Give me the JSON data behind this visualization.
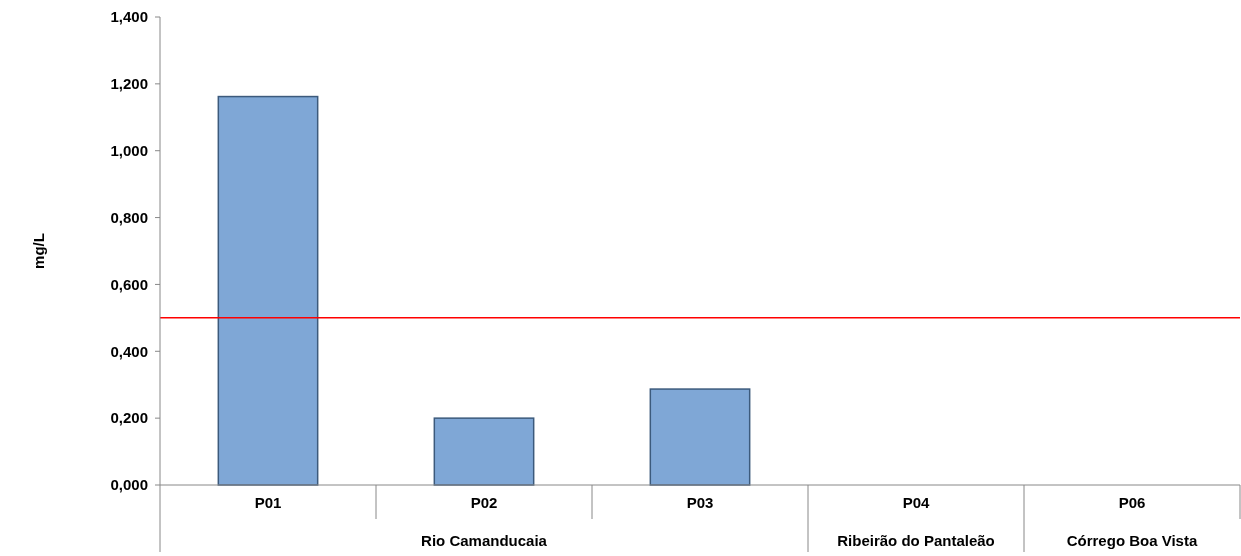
{
  "chart_data": {
    "type": "bar",
    "ylabel": "mg/L",
    "categories": [
      "P01",
      "P02",
      "P03",
      "P04",
      "P06"
    ],
    "values": [
      1.162,
      0.2,
      0.287,
      null,
      null
    ],
    "color": "#7fa7d6",
    "ylim": [
      0,
      1.4
    ],
    "yticks": [
      {
        "value": 0,
        "label": "0,000"
      },
      {
        "value": 0.2,
        "label": "0,200"
      },
      {
        "value": 0.4,
        "label": "0,400"
      },
      {
        "value": 0.6,
        "label": "0,600"
      },
      {
        "value": 0.8,
        "label": "0,800"
      },
      {
        "value": 1,
        "label": "1,000"
      },
      {
        "value": 1.2,
        "label": "1,200"
      },
      {
        "value": 1.4,
        "label": "1,400"
      }
    ],
    "ref_lines": [
      {
        "axis": "y",
        "value": 0.5,
        "color": "#ff0000"
      }
    ],
    "annotations": [
      "Rio Camanducaia",
      "Ribeirão do Pantaleão",
      "Córrego Boa Vista"
    ],
    "grid": false
  }
}
